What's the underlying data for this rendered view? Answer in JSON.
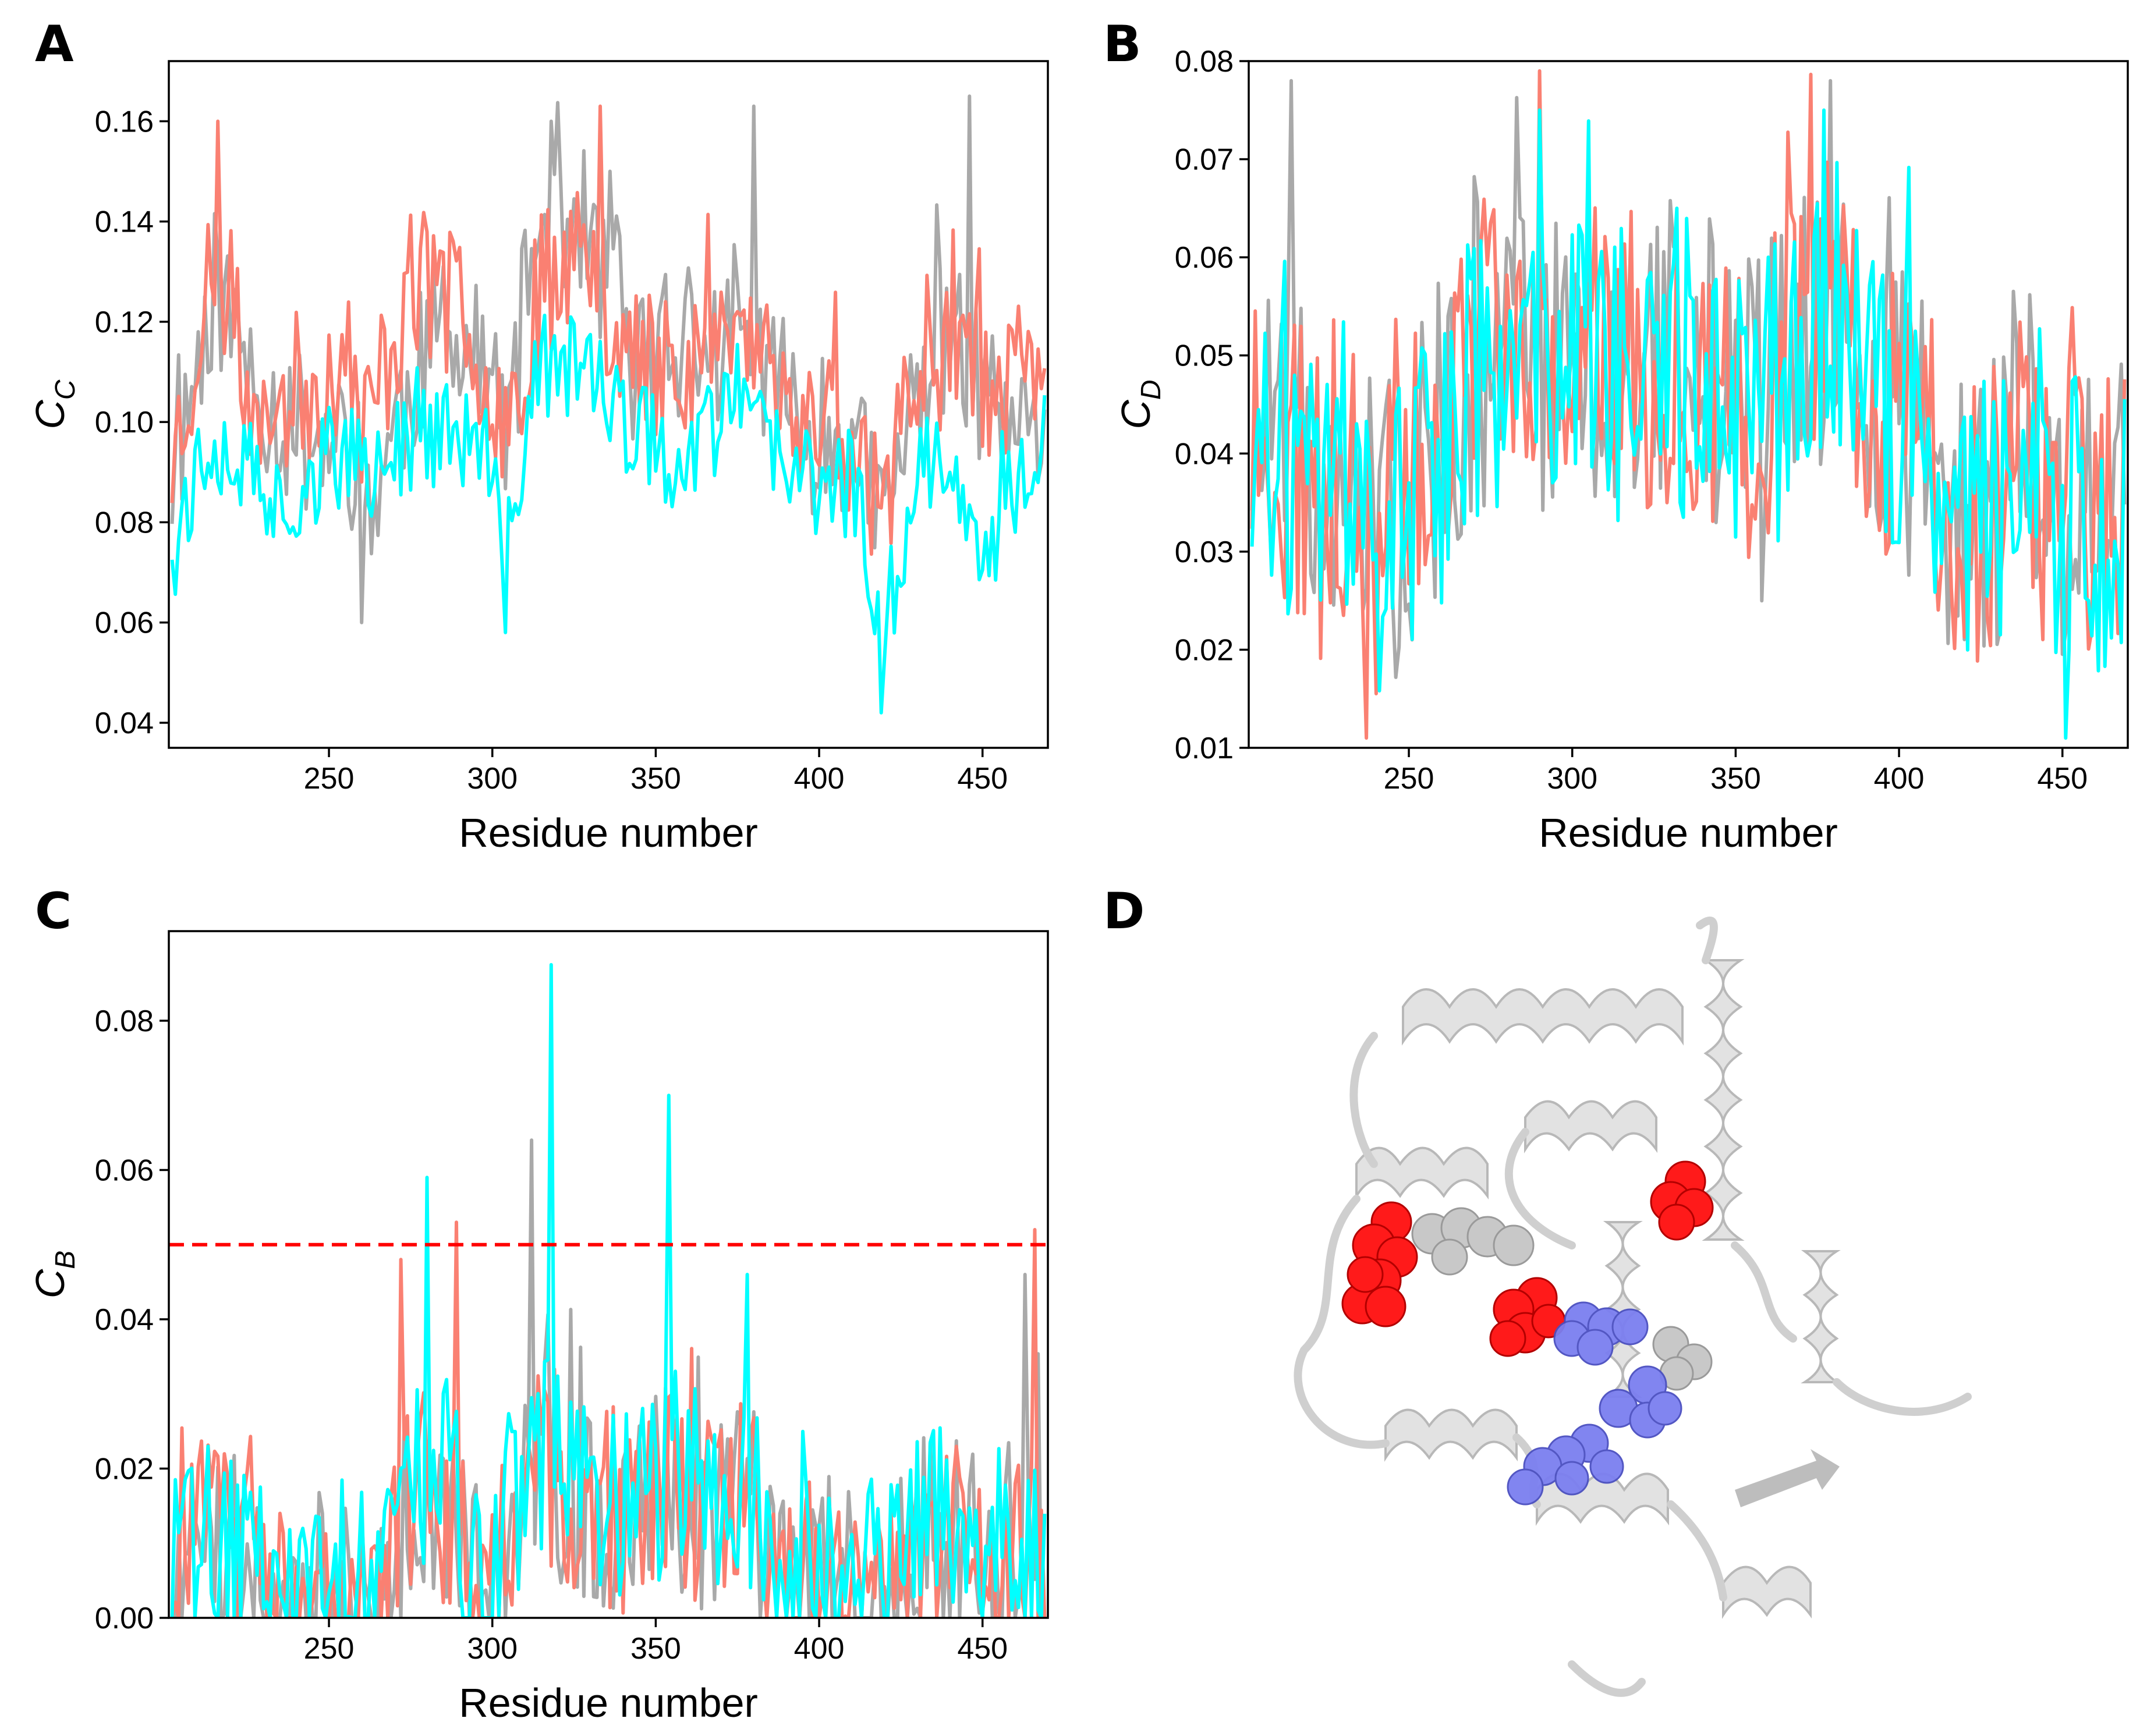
{
  "colors": {
    "series_gray": "#a9a9a9",
    "series_salmon": "#fa8072",
    "series_cyan": "#00ffff",
    "threshold": "#ff0000",
    "sphere_red": "#ff0000",
    "sphere_blue": "#7b7ff0",
    "sphere_gray": "#c8c8c8",
    "cartoon": "#d9d9d9"
  },
  "chart_data": [
    {
      "panel": "A",
      "type": "line",
      "xlabel": "Residue number",
      "ylabel_main": "C",
      "ylabel_sub": "C",
      "xlim": [
        201,
        470
      ],
      "ylim": [
        0.035,
        0.172
      ],
      "xticks": [
        250,
        300,
        350,
        400,
        450
      ],
      "yticks": [
        0.04,
        0.06,
        0.08,
        0.1,
        0.12,
        0.14,
        0.16
      ],
      "ytick_labels": [
        "0.04",
        "0.06",
        "0.08",
        "0.10",
        "0.12",
        "0.14",
        "0.16"
      ],
      "x_start": 202,
      "x_end": 469,
      "series": [
        {
          "name": "gray",
          "color": "#a9a9a9",
          "amp": 0.016,
          "seed": 11,
          "profile": [
            [
              202,
              0.088
            ],
            [
              215,
              0.128
            ],
            [
              225,
              0.112
            ],
            [
              235,
              0.1
            ],
            [
              258,
              0.093
            ],
            [
              262,
              0.083
            ],
            [
              275,
              0.108
            ],
            [
              285,
              0.118
            ],
            [
              298,
              0.11
            ],
            [
              305,
              0.097
            ],
            [
              312,
              0.135
            ],
            [
              325,
              0.143
            ],
            [
              335,
              0.128
            ],
            [
              345,
              0.112
            ],
            [
              355,
              0.115
            ],
            [
              365,
              0.112
            ],
            [
              375,
              0.118
            ],
            [
              385,
              0.112
            ],
            [
              395,
              0.098
            ],
            [
              410,
              0.095
            ],
            [
              420,
              0.08
            ],
            [
              432,
              0.112
            ],
            [
              442,
              0.118
            ],
            [
              452,
              0.1
            ],
            [
              469,
              0.088
            ]
          ]
        },
        {
          "name": "salmon",
          "color": "#fa8072",
          "amp": 0.016,
          "seed": 23,
          "profile": [
            [
              202,
              0.092
            ],
            [
              215,
              0.133
            ],
            [
              225,
              0.108
            ],
            [
              235,
              0.104
            ],
            [
              250,
              0.11
            ],
            [
              262,
              0.1
            ],
            [
              275,
              0.128
            ],
            [
              285,
              0.125
            ],
            [
              298,
              0.112
            ],
            [
              305,
              0.1
            ],
            [
              312,
              0.122
            ],
            [
              325,
              0.138
            ],
            [
              335,
              0.125
            ],
            [
              345,
              0.112
            ],
            [
              355,
              0.11
            ],
            [
              365,
              0.118
            ],
            [
              375,
              0.118
            ],
            [
              385,
              0.112
            ],
            [
              395,
              0.098
            ],
            [
              410,
              0.098
            ],
            [
              420,
              0.082
            ],
            [
              432,
              0.118
            ],
            [
              442,
              0.12
            ],
            [
              452,
              0.108
            ],
            [
              469,
              0.108
            ]
          ]
        },
        {
          "name": "cyan",
          "color": "#00ffff",
          "amp": 0.011,
          "seed": 37,
          "profile": [
            [
              202,
              0.078
            ],
            [
              215,
              0.098
            ],
            [
              225,
              0.09
            ],
            [
              235,
              0.083
            ],
            [
              250,
              0.094
            ],
            [
              262,
              0.09
            ],
            [
              275,
              0.097
            ],
            [
              285,
              0.098
            ],
            [
              298,
              0.094
            ],
            [
              304,
              0.07
            ],
            [
              312,
              0.108
            ],
            [
              325,
              0.115
            ],
            [
              335,
              0.103
            ],
            [
              345,
              0.098
            ],
            [
              355,
              0.092
            ],
            [
              365,
              0.098
            ],
            [
              375,
              0.105
            ],
            [
              385,
              0.094
            ],
            [
              395,
              0.088
            ],
            [
              410,
              0.088
            ],
            [
              420,
              0.06
            ],
            [
              432,
              0.093
            ],
            [
              442,
              0.093
            ],
            [
              450,
              0.075
            ],
            [
              469,
              0.095
            ]
          ]
        }
      ],
      "peaks": [
        {
          "series": 1,
          "x": 216,
          "y": 0.16
        },
        {
          "series": 0,
          "x": 318,
          "y": 0.16
        },
        {
          "series": 1,
          "x": 333,
          "y": 0.163
        },
        {
          "series": 0,
          "x": 380,
          "y": 0.163
        },
        {
          "series": 0,
          "x": 446,
          "y": 0.165
        },
        {
          "series": 2,
          "x": 419,
          "y": 0.042
        },
        {
          "series": 2,
          "x": 304,
          "y": 0.058
        },
        {
          "series": 0,
          "x": 260,
          "y": 0.06
        }
      ]
    },
    {
      "panel": "B",
      "type": "line",
      "xlabel": "Residue number",
      "ylabel_main": "C",
      "ylabel_sub": "D",
      "xlim": [
        201,
        470
      ],
      "ylim": [
        0.01,
        0.08
      ],
      "xticks": [
        250,
        300,
        350,
        400,
        450
      ],
      "yticks": [
        0.01,
        0.02,
        0.03,
        0.04,
        0.05,
        0.06,
        0.07,
        0.08
      ],
      "ytick_labels": [
        "0.01",
        "0.02",
        "0.03",
        "0.04",
        "0.05",
        "0.06",
        "0.07",
        "0.08"
      ],
      "x_start": 202,
      "x_end": 469,
      "series": [
        {
          "name": "gray",
          "color": "#a9a9a9",
          "amp": 0.016,
          "seed": 51,
          "profile": [
            [
              202,
              0.042
            ],
            [
              230,
              0.04
            ],
            [
              240,
              0.03
            ],
            [
              260,
              0.042
            ],
            [
              270,
              0.05
            ],
            [
              290,
              0.05
            ],
            [
              310,
              0.05
            ],
            [
              330,
              0.052
            ],
            [
              350,
              0.046
            ],
            [
              370,
              0.05
            ],
            [
              380,
              0.058
            ],
            [
              390,
              0.045
            ],
            [
              410,
              0.042
            ],
            [
              420,
              0.03
            ],
            [
              440,
              0.042
            ],
            [
              450,
              0.034
            ],
            [
              469,
              0.034
            ]
          ]
        },
        {
          "name": "salmon",
          "color": "#fa8072",
          "amp": 0.016,
          "seed": 63,
          "profile": [
            [
              202,
              0.04
            ],
            [
              230,
              0.038
            ],
            [
              240,
              0.03
            ],
            [
              260,
              0.04
            ],
            [
              270,
              0.05
            ],
            [
              290,
              0.05
            ],
            [
              310,
              0.05
            ],
            [
              330,
              0.05
            ],
            [
              350,
              0.045
            ],
            [
              370,
              0.05
            ],
            [
              380,
              0.058
            ],
            [
              390,
              0.045
            ],
            [
              410,
              0.04
            ],
            [
              420,
              0.03
            ],
            [
              440,
              0.042
            ],
            [
              450,
              0.034
            ],
            [
              469,
              0.034
            ]
          ]
        },
        {
          "name": "cyan",
          "color": "#00ffff",
          "amp": 0.016,
          "seed": 77,
          "profile": [
            [
              202,
              0.038
            ],
            [
              230,
              0.038
            ],
            [
              240,
              0.028
            ],
            [
              260,
              0.04
            ],
            [
              270,
              0.048
            ],
            [
              290,
              0.048
            ],
            [
              310,
              0.048
            ],
            [
              330,
              0.05
            ],
            [
              350,
              0.044
            ],
            [
              370,
              0.048
            ],
            [
              380,
              0.056
            ],
            [
              390,
              0.044
            ],
            [
              410,
              0.04
            ],
            [
              420,
              0.028
            ],
            [
              440,
              0.042
            ],
            [
              450,
              0.032
            ],
            [
              469,
              0.032
            ]
          ]
        }
      ],
      "peaks": [
        {
          "series": 0,
          "x": 214,
          "y": 0.078
        },
        {
          "series": 1,
          "x": 290,
          "y": 0.079
        },
        {
          "series": 0,
          "x": 379,
          "y": 0.078
        },
        {
          "series": 1,
          "x": 237,
          "y": 0.011
        },
        {
          "series": 2,
          "x": 451,
          "y": 0.011
        },
        {
          "series": 2,
          "x": 290,
          "y": 0.075
        },
        {
          "series": 2,
          "x": 377,
          "y": 0.075
        }
      ]
    },
    {
      "panel": "C",
      "type": "line",
      "xlabel": "Residue number",
      "ylabel_main": "C",
      "ylabel_sub": "B",
      "xlim": [
        201,
        470
      ],
      "ylim": [
        0.0,
        0.092
      ],
      "xticks": [
        250,
        300,
        350,
        400,
        450
      ],
      "yticks": [
        0.0,
        0.02,
        0.04,
        0.06,
        0.08
      ],
      "ytick_labels": [
        "0.00",
        "0.02",
        "0.04",
        "0.06",
        "0.08"
      ],
      "threshold": 0.05,
      "x_start": 202,
      "x_end": 469,
      "series": [
        {
          "name": "gray",
          "color": "#a9a9a9",
          "amp": 0.014,
          "seed": 91,
          "profile": [
            [
              202,
              0.006
            ],
            [
              215,
              0.012
            ],
            [
              225,
              0.006
            ],
            [
              235,
              0.002
            ],
            [
              250,
              0.005
            ],
            [
              268,
              0.004
            ],
            [
              275,
              0.016
            ],
            [
              285,
              0.016
            ],
            [
              300,
              0.004
            ],
            [
              312,
              0.022
            ],
            [
              325,
              0.016
            ],
            [
              340,
              0.014
            ],
            [
              355,
              0.018
            ],
            [
              365,
              0.014
            ],
            [
              380,
              0.016
            ],
            [
              387,
              0.002
            ],
            [
              400,
              0.005
            ],
            [
              420,
              0.005
            ],
            [
              435,
              0.01
            ],
            [
              445,
              0.012
            ],
            [
              469,
              0.008
            ]
          ]
        },
        {
          "name": "salmon",
          "color": "#fa8072",
          "amp": 0.014,
          "seed": 103,
          "profile": [
            [
              202,
              0.006
            ],
            [
              215,
              0.012
            ],
            [
              225,
              0.006
            ],
            [
              235,
              0.002
            ],
            [
              250,
              0.005
            ],
            [
              268,
              0.004
            ],
            [
              275,
              0.018
            ],
            [
              285,
              0.014
            ],
            [
              300,
              0.004
            ],
            [
              312,
              0.022
            ],
            [
              325,
              0.018
            ],
            [
              340,
              0.014
            ],
            [
              355,
              0.018
            ],
            [
              365,
              0.014
            ],
            [
              380,
              0.016
            ],
            [
              387,
              0.002
            ],
            [
              400,
              0.005
            ],
            [
              420,
              0.005
            ],
            [
              435,
              0.01
            ],
            [
              445,
              0.012
            ],
            [
              469,
              0.008
            ]
          ]
        },
        {
          "name": "cyan",
          "color": "#00ffff",
          "amp": 0.014,
          "seed": 117,
          "profile": [
            [
              202,
              0.006
            ],
            [
              215,
              0.012
            ],
            [
              225,
              0.006
            ],
            [
              235,
              0.002
            ],
            [
              250,
              0.006
            ],
            [
              268,
              0.004
            ],
            [
              275,
              0.02
            ],
            [
              285,
              0.018
            ],
            [
              300,
              0.004
            ],
            [
              312,
              0.024
            ],
            [
              325,
              0.016
            ],
            [
              340,
              0.014
            ],
            [
              355,
              0.02
            ],
            [
              365,
              0.014
            ],
            [
              380,
              0.016
            ],
            [
              387,
              0.002
            ],
            [
              400,
              0.006
            ],
            [
              420,
              0.005
            ],
            [
              435,
              0.012
            ],
            [
              445,
              0.014
            ],
            [
              469,
              0.006
            ]
          ]
        }
      ],
      "peaks": [
        {
          "series": 2,
          "x": 318,
          "y": 0.0875
        },
        {
          "series": 2,
          "x": 354,
          "y": 0.07
        },
        {
          "series": 0,
          "x": 312,
          "y": 0.064
        },
        {
          "series": 2,
          "x": 280,
          "y": 0.059
        },
        {
          "series": 1,
          "x": 289,
          "y": 0.053
        },
        {
          "series": 1,
          "x": 466,
          "y": 0.052
        },
        {
          "series": 1,
          "x": 272,
          "y": 0.048
        },
        {
          "series": 2,
          "x": 378,
          "y": 0.046
        },
        {
          "series": 0,
          "x": 463,
          "y": 0.046
        }
      ]
    }
  ],
  "panel_d": {
    "letter": "D",
    "description_alt": "protein cartoon with highlighted residues"
  },
  "panel_letters": [
    "A",
    "B",
    "C",
    "D"
  ]
}
